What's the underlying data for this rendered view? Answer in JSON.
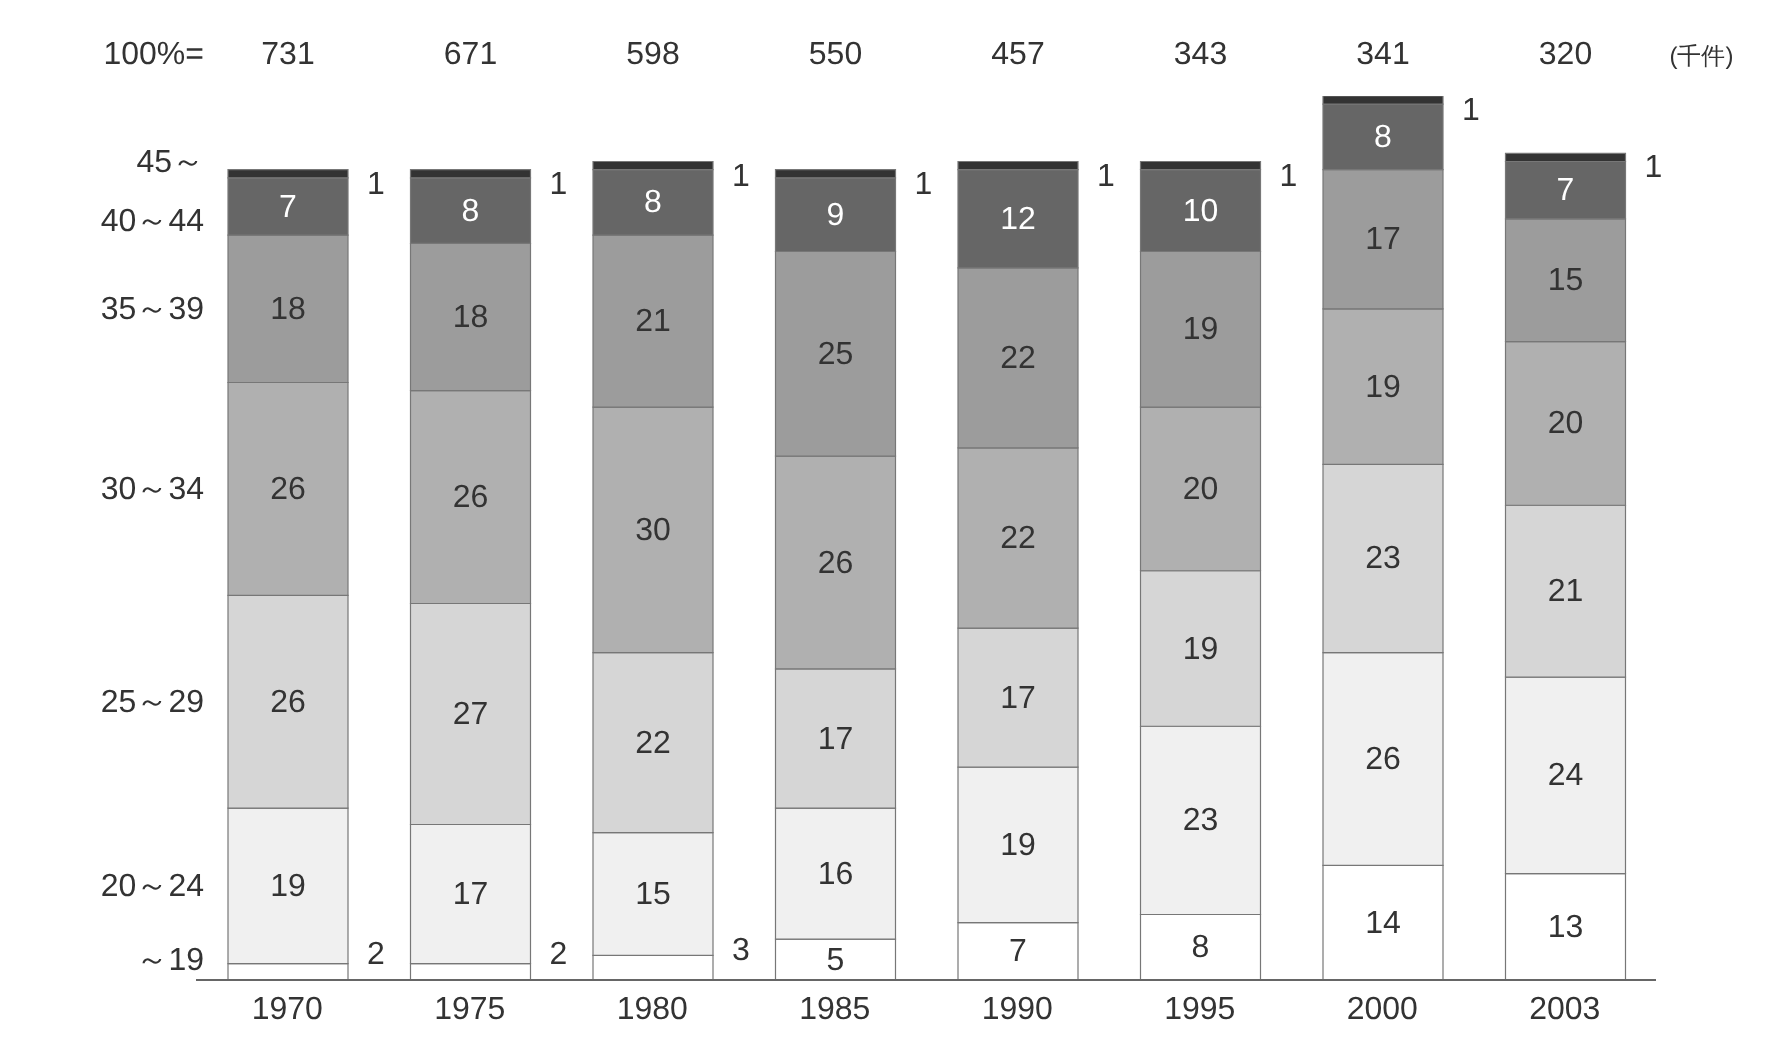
{
  "chart_data": {
    "type": "bar",
    "stacked": true,
    "data_labels": true,
    "tick_labels": "x",
    "ylim": [
      0,
      108
    ],
    "categories": [
      "1970",
      "1975",
      "1980",
      "1985",
      "1990",
      "1995",
      "2000",
      "2003"
    ],
    "series": [
      {
        "name": "～19",
        "color": "#ffffff",
        "values": [
          2,
          2,
          3,
          5,
          7,
          8,
          14,
          13
        ]
      },
      {
        "name": "20～24",
        "color": "#f0f0f0",
        "values": [
          19,
          17,
          15,
          16,
          19,
          23,
          26,
          24
        ]
      },
      {
        "name": "25～29",
        "color": "#d6d6d6",
        "values": [
          26,
          27,
          22,
          17,
          17,
          19,
          23,
          21
        ]
      },
      {
        "name": "30～34",
        "color": "#b0b0b0",
        "values": [
          26,
          26,
          30,
          26,
          22,
          20,
          19,
          20
        ]
      },
      {
        "name": "35～39",
        "color": "#9c9c9c",
        "values": [
          18,
          18,
          21,
          25,
          22,
          19,
          17,
          15
        ]
      },
      {
        "name": "40～44",
        "color": "#666666",
        "values": [
          7,
          8,
          8,
          9,
          12,
          10,
          8,
          7
        ]
      },
      {
        "name": "45～",
        "color": "#333333",
        "values": [
          1,
          1,
          1,
          1,
          1,
          1,
          1,
          1
        ]
      }
    ],
    "annotations": [
      "100%=",
      "731",
      "671",
      "598",
      "550",
      "457",
      "343",
      "341",
      "320",
      "(千件)"
    ]
  }
}
